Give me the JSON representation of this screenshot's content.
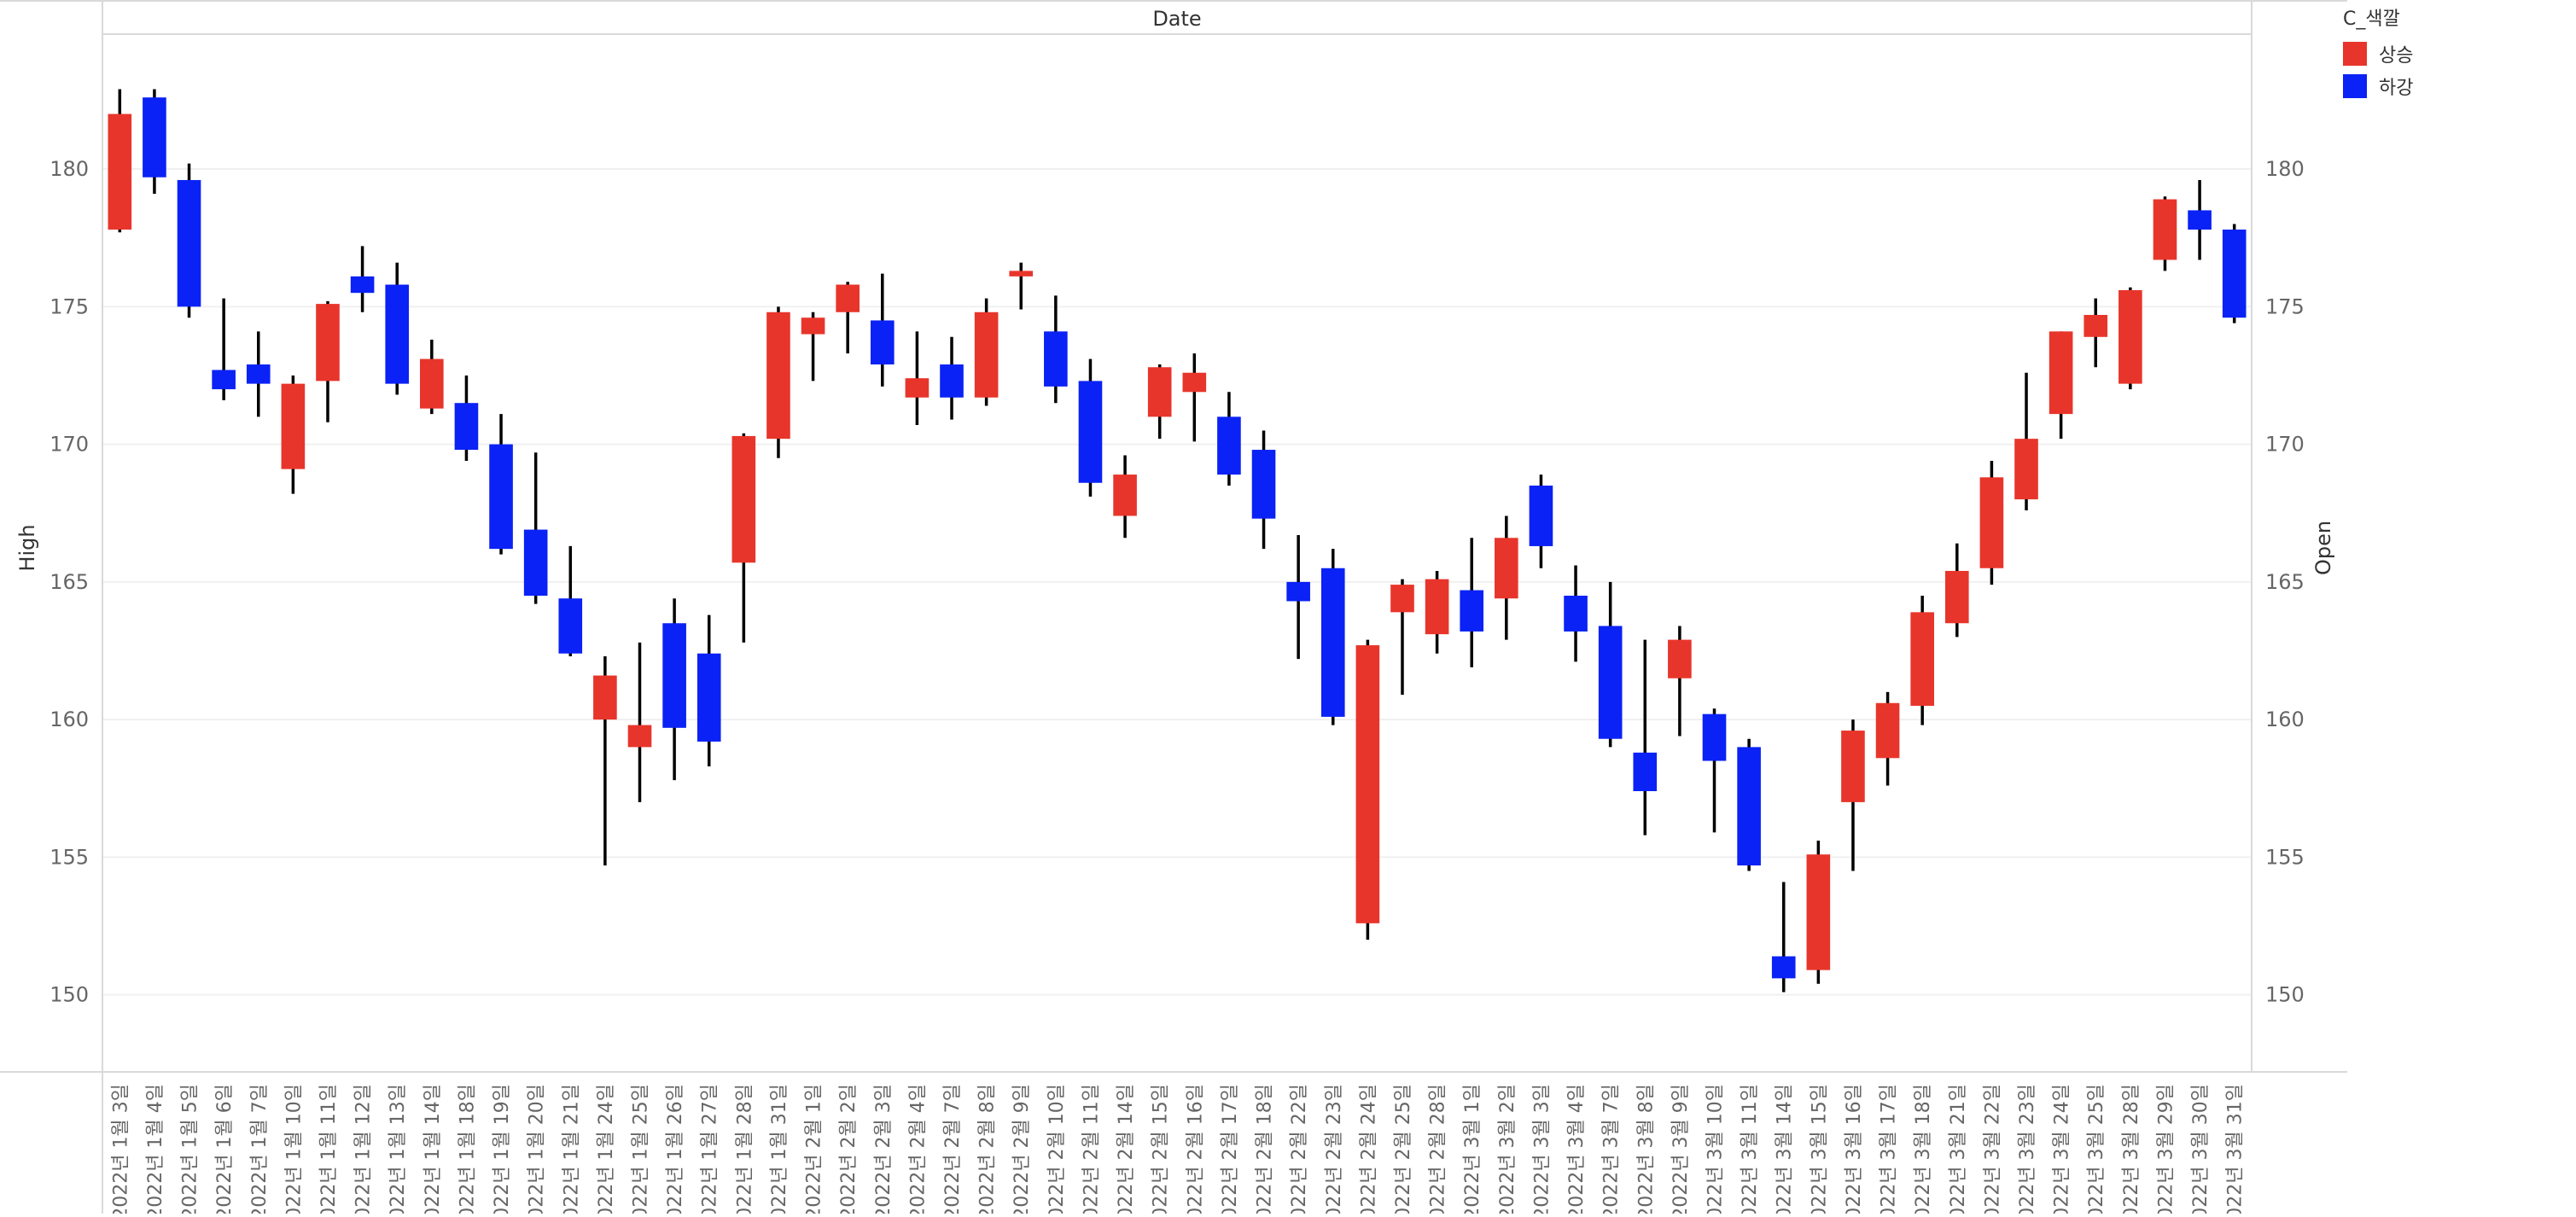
{
  "chart_data": {
    "type": "candlestick",
    "title": "",
    "xlabel": "Date",
    "ylabel": "High",
    "ylabel_right": "Open",
    "ylim": [
      147.2,
      184.9
    ],
    "yticks": [
      150,
      155,
      160,
      165,
      170,
      175,
      180
    ],
    "grid": true,
    "legend": {
      "title": "C_색깔",
      "position": "top-right",
      "items": [
        {
          "name": "상승",
          "color": "#E8352B"
        },
        {
          "name": "하강",
          "color": "#0A22F5"
        }
      ]
    },
    "categories": [
      "2022년 1월 3일",
      "2022년 1월 4일",
      "2022년 1월 5일",
      "2022년 1월 6일",
      "2022년 1월 7일",
      "2022년 1월 10일",
      "2022년 1월 11일",
      "2022년 1월 12일",
      "2022년 1월 13일",
      "2022년 1월 14일",
      "2022년 1월 18일",
      "2022년 1월 19일",
      "2022년 1월 20일",
      "2022년 1월 21일",
      "2022년 1월 24일",
      "2022년 1월 25일",
      "2022년 1월 26일",
      "2022년 1월 27일",
      "2022년 1월 28일",
      "2022년 1월 31일",
      "2022년 2월 1일",
      "2022년 2월 2일",
      "2022년 2월 3일",
      "2022년 2월 4일",
      "2022년 2월 7일",
      "2022년 2월 8일",
      "2022년 2월 9일",
      "2022년 2월 10일",
      "2022년 2월 11일",
      "2022년 2월 14일",
      "2022년 2월 15일",
      "2022년 2월 16일",
      "2022년 2월 17일",
      "2022년 2월 18일",
      "2022년 2월 22일",
      "2022년 2월 23일",
      "2022년 2월 24일",
      "2022년 2월 25일",
      "2022년 2월 28일",
      "2022년 3월 1일",
      "2022년 3월 2일",
      "2022년 3월 3일",
      "2022년 3월 4일",
      "2022년 3월 7일",
      "2022년 3월 8일",
      "2022년 3월 9일",
      "2022년 3월 10일",
      "2022년 3월 11일",
      "2022년 3월 14일",
      "2022년 3월 15일",
      "2022년 3월 16일",
      "2022년 3월 17일",
      "2022년 3월 18일",
      "2022년 3월 21일",
      "2022년 3월 22일",
      "2022년 3월 23일",
      "2022년 3월 24일",
      "2022년 3월 25일",
      "2022년 3월 28일",
      "2022년 3월 29일",
      "2022년 3월 30일",
      "2022년 3월 31일"
    ],
    "series": [
      {
        "date": "2022년 1월 3일",
        "open": 177.8,
        "close": 182.0,
        "high": 182.9,
        "low": 177.7,
        "direction": "상승"
      },
      {
        "date": "2022년 1월 4일",
        "open": 182.6,
        "close": 179.7,
        "high": 182.9,
        "low": 179.1,
        "direction": "하강"
      },
      {
        "date": "2022년 1월 5일",
        "open": 179.6,
        "close": 175.0,
        "high": 180.2,
        "low": 174.6,
        "direction": "하강"
      },
      {
        "date": "2022년 1월 6일",
        "open": 172.7,
        "close": 172.0,
        "high": 175.3,
        "low": 171.6,
        "direction": "하강"
      },
      {
        "date": "2022년 1월 7일",
        "open": 172.9,
        "close": 172.2,
        "high": 174.1,
        "low": 171.0,
        "direction": "하강"
      },
      {
        "date": "2022년 1월 10일",
        "open": 169.1,
        "close": 172.2,
        "high": 172.5,
        "low": 168.2,
        "direction": "상승"
      },
      {
        "date": "2022년 1월 11일",
        "open": 172.3,
        "close": 175.1,
        "high": 175.2,
        "low": 170.8,
        "direction": "상승"
      },
      {
        "date": "2022년 1월 12일",
        "open": 176.1,
        "close": 175.5,
        "high": 177.2,
        "low": 174.8,
        "direction": "하강"
      },
      {
        "date": "2022년 1월 13일",
        "open": 175.8,
        "close": 172.2,
        "high": 176.6,
        "low": 171.8,
        "direction": "하강"
      },
      {
        "date": "2022년 1월 14일",
        "open": 171.3,
        "close": 173.1,
        "high": 173.8,
        "low": 171.1,
        "direction": "상승"
      },
      {
        "date": "2022년 1월 18일",
        "open": 171.5,
        "close": 169.8,
        "high": 172.5,
        "low": 169.4,
        "direction": "하강"
      },
      {
        "date": "2022년 1월 19일",
        "open": 170.0,
        "close": 166.2,
        "high": 171.1,
        "low": 166.0,
        "direction": "하강"
      },
      {
        "date": "2022년 1월 20일",
        "open": 166.9,
        "close": 164.5,
        "high": 169.7,
        "low": 164.2,
        "direction": "하강"
      },
      {
        "date": "2022년 1월 21일",
        "open": 164.4,
        "close": 162.4,
        "high": 166.3,
        "low": 162.3,
        "direction": "하강"
      },
      {
        "date": "2022년 1월 24일",
        "open": 160.0,
        "close": 161.6,
        "high": 162.3,
        "low": 154.7,
        "direction": "상승"
      },
      {
        "date": "2022년 1월 25일",
        "open": 159.0,
        "close": 159.8,
        "high": 162.8,
        "low": 157.0,
        "direction": "상승"
      },
      {
        "date": "2022년 1월 26일",
        "open": 163.5,
        "close": 159.7,
        "high": 164.4,
        "low": 157.8,
        "direction": "하강"
      },
      {
        "date": "2022년 1월 27일",
        "open": 162.4,
        "close": 159.2,
        "high": 163.8,
        "low": 158.3,
        "direction": "하강"
      },
      {
        "date": "2022년 1월 28일",
        "open": 165.7,
        "close": 170.3,
        "high": 170.4,
        "low": 162.8,
        "direction": "상승"
      },
      {
        "date": "2022년 1월 31일",
        "open": 170.2,
        "close": 174.8,
        "high": 175.0,
        "low": 169.5,
        "direction": "상승"
      },
      {
        "date": "2022년 2월 1일",
        "open": 174.0,
        "close": 174.6,
        "high": 174.8,
        "low": 172.3,
        "direction": "상승"
      },
      {
        "date": "2022년 2월 2일",
        "open": 174.8,
        "close": 175.8,
        "high": 175.9,
        "low": 173.3,
        "direction": "상승"
      },
      {
        "date": "2022년 2월 3일",
        "open": 174.5,
        "close": 172.9,
        "high": 176.2,
        "low": 172.1,
        "direction": "하강"
      },
      {
        "date": "2022년 2월 4일",
        "open": 171.7,
        "close": 172.4,
        "high": 174.1,
        "low": 170.7,
        "direction": "상승"
      },
      {
        "date": "2022년 2월 7일",
        "open": 172.9,
        "close": 171.7,
        "high": 173.9,
        "low": 170.9,
        "direction": "하강"
      },
      {
        "date": "2022년 2월 8일",
        "open": 171.7,
        "close": 174.8,
        "high": 175.3,
        "low": 171.4,
        "direction": "상승"
      },
      {
        "date": "2022년 2월 9일",
        "open": 176.1,
        "close": 176.3,
        "high": 176.6,
        "low": 174.9,
        "direction": "상승"
      },
      {
        "date": "2022년 2월 10일",
        "open": 174.1,
        "close": 172.1,
        "high": 175.4,
        "low": 171.5,
        "direction": "하강"
      },
      {
        "date": "2022년 2월 11일",
        "open": 172.3,
        "close": 168.6,
        "high": 173.1,
        "low": 168.1,
        "direction": "하강"
      },
      {
        "date": "2022년 2월 14일",
        "open": 167.4,
        "close": 168.9,
        "high": 169.6,
        "low": 166.6,
        "direction": "상승"
      },
      {
        "date": "2022년 2월 15일",
        "open": 171.0,
        "close": 172.8,
        "high": 172.9,
        "low": 170.2,
        "direction": "상승"
      },
      {
        "date": "2022년 2월 16일",
        "open": 171.9,
        "close": 172.6,
        "high": 173.3,
        "low": 170.1,
        "direction": "상승"
      },
      {
        "date": "2022년 2월 17일",
        "open": 171.0,
        "close": 168.9,
        "high": 171.9,
        "low": 168.5,
        "direction": "하강"
      },
      {
        "date": "2022년 2월 18일",
        "open": 169.8,
        "close": 167.3,
        "high": 170.5,
        "low": 166.2,
        "direction": "하강"
      },
      {
        "date": "2022년 2월 22일",
        "open": 165.0,
        "close": 164.3,
        "high": 166.7,
        "low": 162.2,
        "direction": "하강"
      },
      {
        "date": "2022년 2월 23일",
        "open": 165.5,
        "close": 160.1,
        "high": 166.2,
        "low": 159.8,
        "direction": "하강"
      },
      {
        "date": "2022년 2월 24일",
        "open": 152.6,
        "close": 162.7,
        "high": 162.9,
        "low": 152.0,
        "direction": "상승"
      },
      {
        "date": "2022년 2월 25일",
        "open": 163.9,
        "close": 164.9,
        "high": 165.1,
        "low": 160.9,
        "direction": "상승"
      },
      {
        "date": "2022년 2월 28일",
        "open": 163.1,
        "close": 165.1,
        "high": 165.4,
        "low": 162.4,
        "direction": "상승"
      },
      {
        "date": "2022년 3월 1일",
        "open": 164.7,
        "close": 163.2,
        "high": 166.6,
        "low": 161.9,
        "direction": "하강"
      },
      {
        "date": "2022년 3월 2일",
        "open": 164.4,
        "close": 166.6,
        "high": 167.4,
        "low": 162.9,
        "direction": "상승"
      },
      {
        "date": "2022년 3월 3일",
        "open": 168.5,
        "close": 166.3,
        "high": 168.9,
        "low": 165.5,
        "direction": "하강"
      },
      {
        "date": "2022년 3월 4일",
        "open": 164.5,
        "close": 163.2,
        "high": 165.6,
        "low": 162.1,
        "direction": "하강"
      },
      {
        "date": "2022년 3월 7일",
        "open": 163.4,
        "close": 159.3,
        "high": 165.0,
        "low": 159.0,
        "direction": "하강"
      },
      {
        "date": "2022년 3월 8일",
        "open": 158.8,
        "close": 157.4,
        "high": 162.9,
        "low": 155.8,
        "direction": "하강"
      },
      {
        "date": "2022년 3월 9일",
        "open": 161.5,
        "close": 162.9,
        "high": 163.4,
        "low": 159.4,
        "direction": "상승"
      },
      {
        "date": "2022년 3월 10일",
        "open": 160.2,
        "close": 158.5,
        "high": 160.4,
        "low": 155.9,
        "direction": "하강"
      },
      {
        "date": "2022년 3월 11일",
        "open": 159.0,
        "close": 154.7,
        "high": 159.3,
        "low": 154.5,
        "direction": "하강"
      },
      {
        "date": "2022년 3월 14일",
        "open": 151.4,
        "close": 150.6,
        "high": 154.1,
        "low": 150.1,
        "direction": "하강"
      },
      {
        "date": "2022년 3월 15일",
        "open": 150.9,
        "close": 155.1,
        "high": 155.6,
        "low": 150.4,
        "direction": "상승"
      },
      {
        "date": "2022년 3월 16일",
        "open": 157.0,
        "close": 159.6,
        "high": 160.0,
        "low": 154.5,
        "direction": "상승"
      },
      {
        "date": "2022년 3월 17일",
        "open": 158.6,
        "close": 160.6,
        "high": 161.0,
        "low": 157.6,
        "direction": "상승"
      },
      {
        "date": "2022년 3월 18일",
        "open": 160.5,
        "close": 163.9,
        "high": 164.5,
        "low": 159.8,
        "direction": "상승"
      },
      {
        "date": "2022년 3월 21일",
        "open": 163.5,
        "close": 165.4,
        "high": 166.4,
        "low": 163.0,
        "direction": "상승"
      },
      {
        "date": "2022년 3월 22일",
        "open": 165.5,
        "close": 168.8,
        "high": 169.4,
        "low": 164.9,
        "direction": "상승"
      },
      {
        "date": "2022년 3월 23일",
        "open": 168.0,
        "close": 170.2,
        "high": 172.6,
        "low": 167.6,
        "direction": "상승"
      },
      {
        "date": "2022년 3월 24일",
        "open": 171.1,
        "close": 174.1,
        "high": 174.1,
        "low": 170.2,
        "direction": "상승"
      },
      {
        "date": "2022년 3월 25일",
        "open": 173.9,
        "close": 174.7,
        "high": 175.3,
        "low": 172.8,
        "direction": "상승"
      },
      {
        "date": "2022년 3월 28일",
        "open": 172.2,
        "close": 175.6,
        "high": 175.7,
        "low": 172.0,
        "direction": "상승"
      },
      {
        "date": "2022년 3월 29일",
        "open": 176.7,
        "close": 178.9,
        "high": 179.0,
        "low": 176.3,
        "direction": "상승"
      },
      {
        "date": "2022년 3월 30일",
        "open": 178.5,
        "close": 177.8,
        "high": 179.6,
        "low": 176.7,
        "direction": "하강"
      },
      {
        "date": "2022년 3월 31일",
        "open": 177.8,
        "close": 174.6,
        "high": 178.0,
        "low": 174.4,
        "direction": "하강"
      }
    ]
  }
}
